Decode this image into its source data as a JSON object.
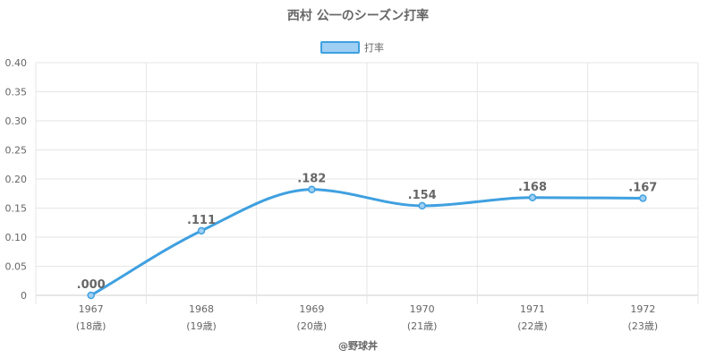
{
  "chart_data": {
    "type": "line",
    "title": "西村 公一のシーズン打率",
    "legend": "打率",
    "legend_position": "top-center",
    "categories": [
      "1967",
      "1968",
      "1969",
      "1970",
      "1971",
      "1972"
    ],
    "category_sublabels": [
      "(18歳)",
      "(19歳)",
      "(20歳)",
      "(21歳)",
      "(22歳)",
      "(23歳)"
    ],
    "series": [
      {
        "name": "打率",
        "values": [
          0.0,
          0.111,
          0.182,
          0.154,
          0.168,
          0.167
        ]
      }
    ],
    "data_labels": [
      ".000",
      ".111",
      ".182",
      ".154",
      ".168",
      ".167"
    ],
    "yticks": [
      "0",
      "0.05",
      "0.10",
      "0.15",
      "0.20",
      "0.25",
      "0.30",
      "0.35",
      "0.40"
    ],
    "ylim": [
      0,
      0.4
    ],
    "grid": true,
    "colors": {
      "line": "#3fa0e0",
      "legend_fill": "#9fcff2",
      "grid": "#e6e6e6",
      "axis": "#cccccc"
    }
  },
  "credit": "@野球丼"
}
